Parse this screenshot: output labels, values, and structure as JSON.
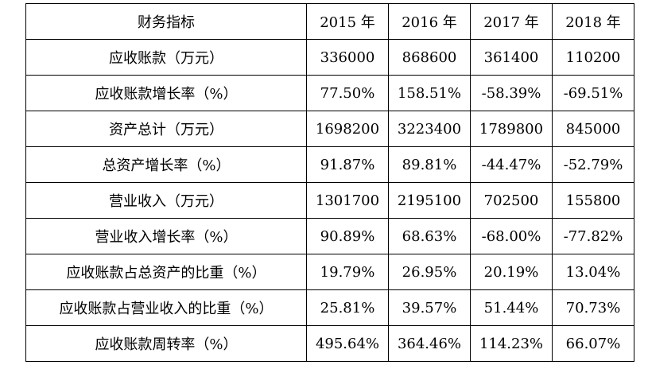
{
  "table": {
    "headers": [
      "财务指标",
      "2015 年",
      "2016 年",
      "2017 年",
      "2018 年"
    ],
    "rows": [
      [
        "应收账款（万元）",
        "336000",
        "868600",
        "361400",
        "110200"
      ],
      [
        "应收账款增长率（%）",
        "77.50%",
        "158.51%",
        "-58.39%",
        "-69.51%"
      ],
      [
        "资产总计（万元）",
        "1698200",
        "3223400",
        "1789800",
        "845000"
      ],
      [
        "总资产增长率（%）",
        "91.87%",
        "89.81%",
        "-44.47%",
        "-52.79%"
      ],
      [
        "营业收入（万元）",
        "1301700",
        "2195100",
        "702500",
        "155800"
      ],
      [
        "营业收入增长率（%）",
        "90.89%",
        "68.63%",
        "-68.00%",
        "-77.82%"
      ],
      [
        "应收账款占总资产的比重（%）",
        "19.79%",
        "26.95%",
        "20.19%",
        "13.04%"
      ],
      [
        "应收账款占营业收入的比重（%）",
        "25.81%",
        "39.57%",
        "51.44%",
        "70.73%"
      ],
      [
        "应收账款周转率（%）",
        "495.64%",
        "364.46%",
        "114.23%",
        "66.07%"
      ]
    ]
  }
}
